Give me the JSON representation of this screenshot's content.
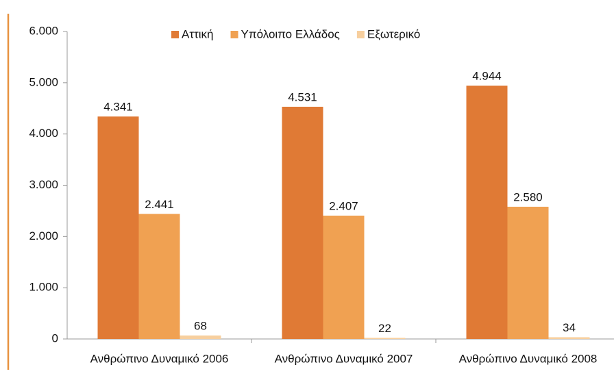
{
  "chart_data": {
    "type": "bar",
    "categories": [
      "Ανθρώπινο Δυναμικό 2006",
      "Ανθρώπινο Δυναμικό 2007",
      "Ανθρώπινο Δυναμικό 2008"
    ],
    "series": [
      {
        "name": "Αττική",
        "color": "#e07a35",
        "values": [
          4341,
          4531,
          4944
        ],
        "value_labels": [
          "4.341",
          "4.531",
          "4.944"
        ]
      },
      {
        "name": "Υπόλοιπο Ελλάδος",
        "color": "#f0a152",
        "values": [
          2441,
          2407,
          2580
        ],
        "value_labels": [
          "2.441",
          "2.407",
          "2.580"
        ]
      },
      {
        "name": "Εξωτερικό",
        "color": "#f7cf9e",
        "values": [
          68,
          22,
          34
        ],
        "value_labels": [
          "68",
          "22",
          "34"
        ]
      }
    ],
    "ylim": [
      0,
      6000
    ],
    "yticks": [
      0,
      {
        "value": 1000,
        "label": "1.000"
      },
      {
        "value": 2000,
        "label": "2.000"
      },
      {
        "value": 3000,
        "label": "3.000"
      },
      {
        "value": 4000,
        "label": "4.000"
      },
      {
        "value": 5000,
        "label": "5.000"
      },
      {
        "value": 6000,
        "label": "6.000"
      }
    ],
    "legend": "top"
  }
}
